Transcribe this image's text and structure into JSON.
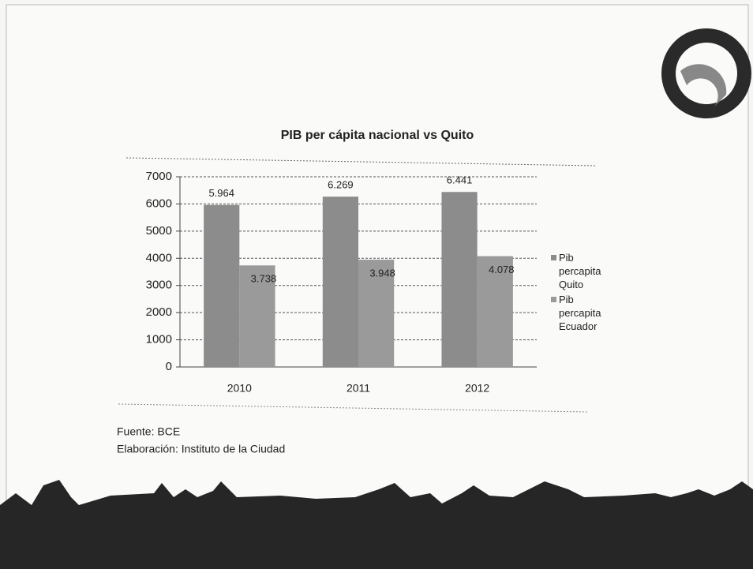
{
  "chart_data": {
    "type": "bar",
    "title": "PIB per cápita nacional vs Quito",
    "categories": [
      "2010",
      "2011",
      "2012"
    ],
    "series": [
      {
        "name": "Pib percapita Quito",
        "color": "#8c8c8c",
        "values": [
          5964,
          6269,
          6441
        ],
        "value_labels": [
          "5.964",
          "6.269",
          "6.441"
        ]
      },
      {
        "name": "Pib percapita Ecuador",
        "color": "#9a9a9a",
        "values": [
          3738,
          3948,
          4078
        ],
        "value_labels": [
          "3.738",
          "3.948",
          "4.078"
        ]
      }
    ],
    "ylim": [
      0,
      7000
    ],
    "yticks": [
      0,
      1000,
      2000,
      3000,
      4000,
      5000,
      6000,
      7000
    ],
    "grid": true,
    "legend": "right"
  },
  "notes": {
    "source": "Fuente: BCE",
    "author": "Elaboración: Instituto de la Ciudad"
  }
}
